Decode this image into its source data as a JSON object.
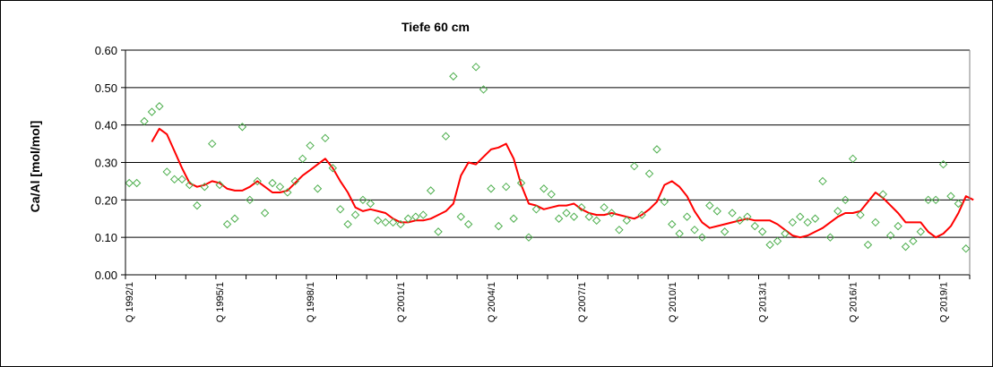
{
  "chart_data": {
    "type": "scatter",
    "title": "Tiefe  60 cm",
    "ylabel": "Ca/Al [mol/mol]",
    "xlabel": "",
    "ylim": [
      0,
      0.6
    ],
    "yticks": [
      "0.00",
      "0.10",
      "0.20",
      "0.30",
      "0.40",
      "0.50",
      "0.60"
    ],
    "grid": "horizontal",
    "x_period": "quarter",
    "x_start": "1992-Q1",
    "x_end": "2019-Q4",
    "xtick_labels": [
      {
        "label": "Q 1992/1",
        "quarter": 0
      },
      {
        "label": "Q 1995/1",
        "quarter": 12
      },
      {
        "label": "Q 1998/1",
        "quarter": 24
      },
      {
        "label": "Q 2001/1",
        "quarter": 36
      },
      {
        "label": "Q 2004/1",
        "quarter": 48
      },
      {
        "label": "Q 2007/1",
        "quarter": 60
      },
      {
        "label": "Q 2010/1",
        "quarter": 72
      },
      {
        "label": "Q 2013/1",
        "quarter": 84
      },
      {
        "label": "Q 2016/1",
        "quarter": 96
      },
      {
        "label": "Q 2019/1",
        "quarter": 108
      }
    ],
    "series": [
      {
        "kind": "markers",
        "marker": "diamond",
        "color": "#4cae4c",
        "values": [
          0.245,
          0.245,
          0.41,
          0.435,
          0.45,
          0.275,
          0.255,
          0.255,
          0.24,
          0.185,
          0.235,
          0.35,
          0.24,
          0.135,
          0.15,
          0.395,
          0.2,
          0.25,
          0.165,
          0.245,
          0.235,
          0.22,
          0.25,
          0.31,
          0.345,
          0.23,
          0.365,
          0.285,
          0.175,
          0.135,
          0.16,
          0.2,
          0.19,
          0.145,
          0.14,
          0.14,
          0.135,
          0.15,
          0.155,
          0.16,
          0.225,
          0.115,
          0.37,
          0.53,
          0.155,
          0.135,
          0.555,
          0.495,
          0.23,
          0.13,
          0.235,
          0.15,
          0.245,
          0.1,
          0.175,
          0.23,
          0.215,
          0.15,
          0.165,
          0.155,
          0.18,
          0.155,
          0.145,
          0.18,
          0.165,
          0.12,
          0.145,
          0.29,
          0.16,
          0.27,
          0.335,
          0.195,
          0.135,
          0.11,
          0.155,
          0.12,
          0.1,
          0.185,
          0.17,
          0.115,
          0.165,
          0.145,
          0.155,
          0.13,
          0.115,
          0.08,
          0.09,
          0.11,
          0.14,
          0.155,
          0.14,
          0.15,
          0.25,
          0.1,
          0.17,
          0.2,
          0.31,
          0.16,
          0.08,
          0.14,
          0.215,
          0.105,
          0.13,
          0.075,
          0.09,
          0.115,
          0.2,
          0.2,
          0.295,
          0.21,
          0.19,
          0.07
        ]
      },
      {
        "kind": "line",
        "color": "#ff0000",
        "start_quarter": 3,
        "values": [
          0.355,
          0.39,
          0.375,
          0.33,
          0.285,
          0.245,
          0.235,
          0.24,
          0.25,
          0.245,
          0.23,
          0.225,
          0.225,
          0.235,
          0.25,
          0.235,
          0.22,
          0.22,
          0.225,
          0.245,
          0.265,
          0.28,
          0.295,
          0.31,
          0.285,
          0.25,
          0.22,
          0.18,
          0.17,
          0.175,
          0.17,
          0.165,
          0.15,
          0.14,
          0.14,
          0.145,
          0.145,
          0.15,
          0.16,
          0.17,
          0.19,
          0.265,
          0.3,
          0.295,
          0.315,
          0.335,
          0.34,
          0.35,
          0.31,
          0.24,
          0.19,
          0.185,
          0.175,
          0.18,
          0.185,
          0.185,
          0.19,
          0.175,
          0.165,
          0.16,
          0.16,
          0.165,
          0.16,
          0.155,
          0.15,
          0.16,
          0.175,
          0.195,
          0.24,
          0.25,
          0.235,
          0.21,
          0.17,
          0.14,
          0.125,
          0.13,
          0.135,
          0.14,
          0.145,
          0.15,
          0.145,
          0.145,
          0.145,
          0.135,
          0.12,
          0.105,
          0.1,
          0.105,
          0.115,
          0.125,
          0.14,
          0.155,
          0.165,
          0.165,
          0.17,
          0.195,
          0.22,
          0.205,
          0.185,
          0.165,
          0.14,
          0.14,
          0.14,
          0.115,
          0.1,
          0.11,
          0.13,
          0.165,
          0.21,
          0.2
        ]
      }
    ]
  }
}
